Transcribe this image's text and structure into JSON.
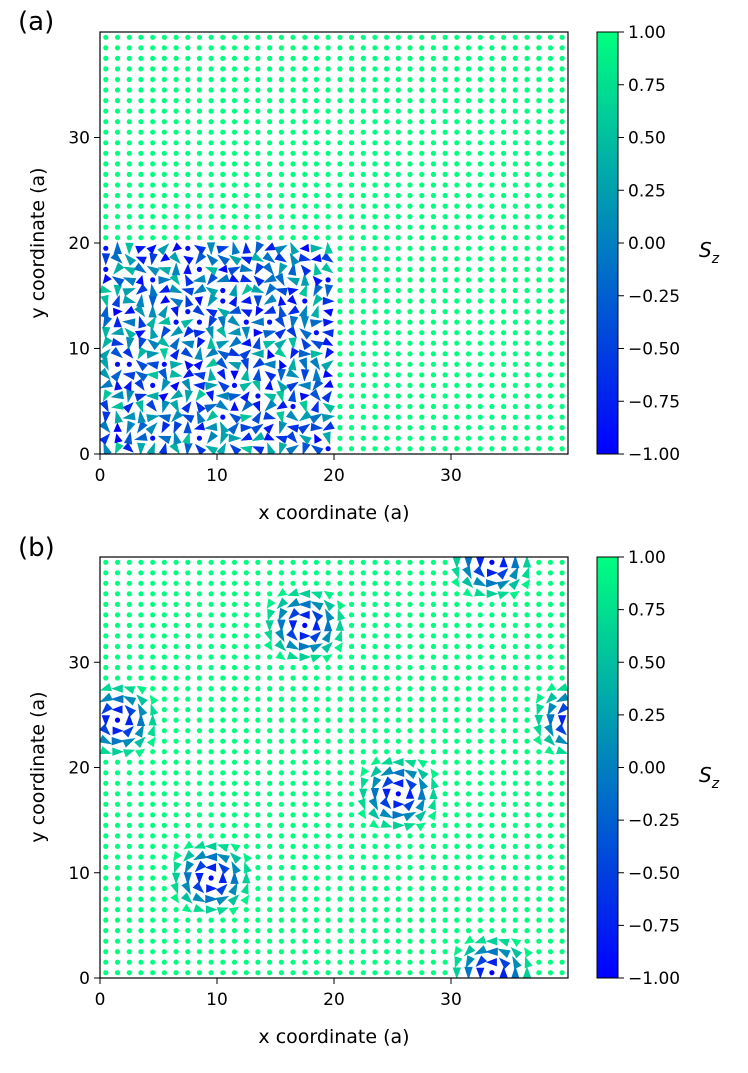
{
  "colormap": {
    "name": "winter",
    "low": "#0000ff",
    "high": "#00ff80"
  },
  "chart_data": [
    {
      "type": "vector-field",
      "panel_label": "(a)",
      "description_kind": "random-spin-region",
      "xlabel": "x coordinate (a)",
      "ylabel": "y coordinate (a)",
      "xlim": [
        0,
        40
      ],
      "ylim": [
        0,
        40
      ],
      "grid_n": 40,
      "xticks": [
        0,
        10,
        20,
        30
      ],
      "yticks": [
        0,
        10,
        20,
        30
      ],
      "xtick_labels": [
        "0",
        "10",
        "20",
        "30"
      ],
      "ytick_labels": [
        "0",
        "10",
        "20",
        "30"
      ],
      "disordered_region": {
        "x": [
          0,
          19
        ],
        "y": [
          0,
          19
        ]
      },
      "colorbar": {
        "label": "S_z",
        "range": [
          -1.0,
          1.0
        ],
        "ticks": [
          1.0,
          0.75,
          0.5,
          0.25,
          0.0,
          -0.25,
          -0.5,
          -0.75,
          -1.0
        ],
        "tick_labels": [
          "1.00",
          "0.75",
          "0.50",
          "0.25",
          "0.00",
          "−0.25",
          "−0.50",
          "−0.75",
          "−1.00"
        ]
      }
    },
    {
      "type": "vector-field",
      "panel_label": "(b)",
      "description_kind": "skyrmion-lattice",
      "xlabel": "x coordinate (a)",
      "ylabel": "y coordinate (a)",
      "xlim": [
        0,
        40
      ],
      "ylim": [
        0,
        40
      ],
      "grid_n": 40,
      "xticks": [
        0,
        10,
        20,
        30
      ],
      "yticks": [
        0,
        10,
        20,
        30
      ],
      "xtick_labels": [
        "0",
        "10",
        "20",
        "30"
      ],
      "ytick_labels": [
        "0",
        "10",
        "20",
        "30"
      ],
      "skyrmions": [
        {
          "x": 17,
          "y": 33
        },
        {
          "x": 1,
          "y": 24
        },
        {
          "x": 25,
          "y": 17
        },
        {
          "x": 9,
          "y": 9
        },
        {
          "x": 33,
          "y": 39
        },
        {
          "x": 33,
          "y": 0
        },
        {
          "x": 40,
          "y": 24
        }
      ],
      "skyrmion_radius": 4.2,
      "colorbar": {
        "label": "S_z",
        "range": [
          -1.0,
          1.0
        ],
        "ticks": [
          1.0,
          0.75,
          0.5,
          0.25,
          0.0,
          -0.25,
          -0.5,
          -0.75,
          -1.0
        ],
        "tick_labels": [
          "1.00",
          "0.75",
          "0.50",
          "0.25",
          "0.00",
          "−0.25",
          "−0.50",
          "−0.75",
          "−1.00"
        ]
      }
    }
  ]
}
